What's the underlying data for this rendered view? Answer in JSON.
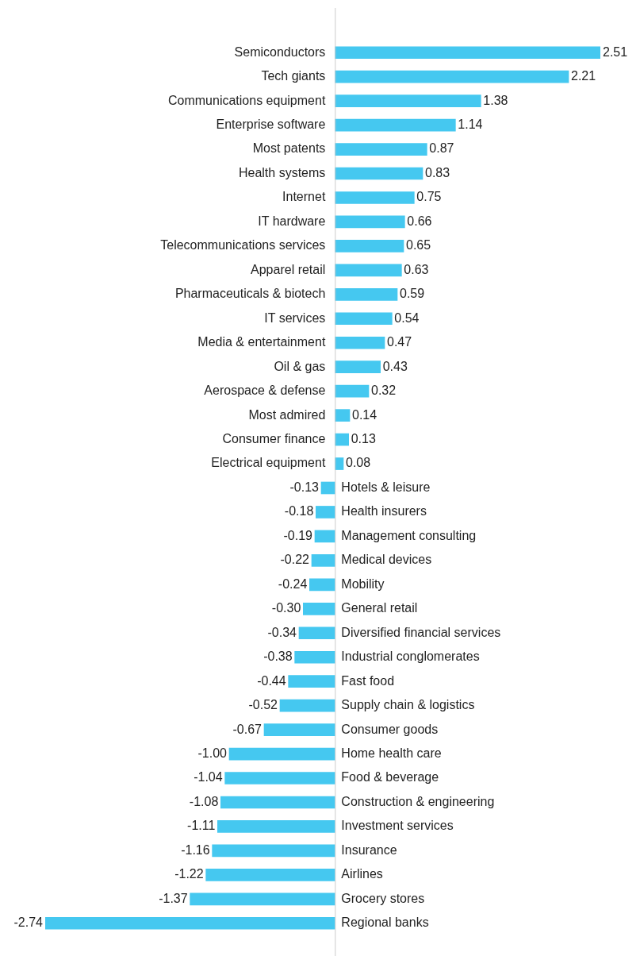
{
  "chart_data": {
    "type": "bar",
    "orientation": "horizontal",
    "value_labels": [
      "2.51",
      "2.21",
      "1.38",
      "1.14",
      "0.87",
      "0.83",
      "0.75",
      "0.66",
      "0.65",
      "0.63",
      "0.59",
      "0.54",
      "0.47",
      "0.43",
      "0.32",
      "0.14",
      "0.13",
      "0.08",
      "-0.13",
      "-0.18",
      "-0.19",
      "-0.22",
      "-0.24",
      "-0.30",
      "-0.34",
      "-0.38",
      "-0.44",
      "-0.52",
      "-0.67",
      "-1.00",
      "-1.04",
      "-1.08",
      "-1.11",
      "-1.16",
      "-1.22",
      "-1.37",
      "-2.74"
    ],
    "color": "#45c8f0",
    "categories": [
      "Semiconductors",
      "Tech giants",
      "Communications equipment",
      "Enterprise software",
      "Most patents",
      "Health systems",
      "Internet",
      "IT hardware",
      "Telecommunications services",
      "Apparel retail",
      "Pharmaceuticals & biotech",
      "IT services",
      "Media & entertainment",
      "Oil & gas",
      "Aerospace & defense",
      "Most admired",
      "Consumer finance",
      "Electrical equipment",
      "Hotels & leisure",
      "Health insurers",
      "Management consulting",
      "Medical devices",
      "Mobility",
      "General retail",
      "Diversified financial services",
      "Industrial conglomerates",
      "Fast food",
      "Supply chain & logistics",
      "Consumer goods",
      "Home health care",
      "Food & beverage",
      "Construction & engineering",
      "Investment services",
      "Insurance",
      "Airlines",
      "Grocery stores",
      "Regional banks"
    ],
    "values": [
      2.51,
      2.21,
      1.38,
      1.14,
      0.87,
      0.83,
      0.75,
      0.66,
      0.65,
      0.63,
      0.59,
      0.54,
      0.47,
      0.43,
      0.32,
      0.14,
      0.13,
      0.08,
      -0.13,
      -0.18,
      -0.19,
      -0.22,
      -0.24,
      -0.3,
      -0.34,
      -0.38,
      -0.44,
      -0.52,
      -0.67,
      -1.0,
      -1.04,
      -1.08,
      -1.11,
      -1.16,
      -1.22,
      -1.37,
      -2.74
    ]
  }
}
